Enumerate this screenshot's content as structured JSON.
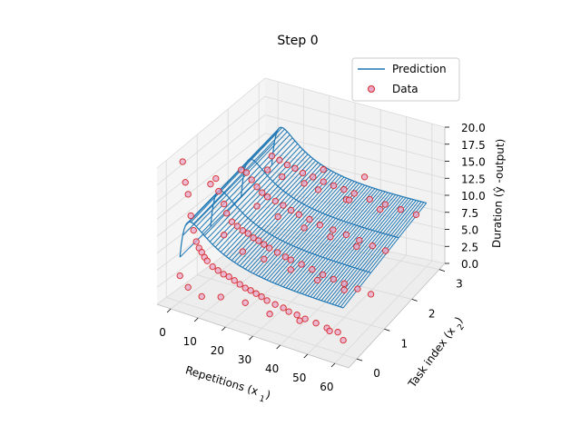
{
  "chart_data": {
    "type": "3d-scatter-surface",
    "title": "Step 0",
    "xlabel": "Repetitions (x_1)",
    "ylabel": "Task index (x_2)",
    "zlabel": "Duration (ŷ -output)",
    "xlim": [
      -5,
      65
    ],
    "ylim": [
      -0.3,
      3.2
    ],
    "zlim": [
      0,
      20
    ],
    "xticks": [
      "0",
      "10",
      "20",
      "30",
      "40",
      "50",
      "60"
    ],
    "yticks": [
      "0",
      "1",
      "2",
      "3"
    ],
    "zticks": [
      "0.0",
      "2.5",
      "5.0",
      "7.5",
      "10.0",
      "12.5",
      "15.0",
      "17.5",
      "20.0"
    ],
    "legend": {
      "placement": "upper-right",
      "entries": [
        {
          "label": "Prediction",
          "kind": "line",
          "color": "#1f77b4"
        },
        {
          "label": "Data",
          "kind": "marker",
          "color": "#d62728"
        }
      ]
    },
    "series": [
      {
        "name": "Prediction",
        "kind": "wireframe-surface",
        "color": "#1f77b4",
        "x_range": [
          0,
          60
        ],
        "y_range": [
          0,
          3
        ],
        "model": "z = 7 + 9*(1-exp(-x/2))*exp(-x/12) shifted by task index",
        "peak_z": 15.5
      },
      {
        "name": "Data",
        "kind": "scatter",
        "color": "#d62728",
        "fill": "#e9a6c8",
        "points": [
          [
            0,
            0,
            3.8
          ],
          [
            1,
            0,
            20.5
          ],
          [
            2,
            0,
            17.6
          ],
          [
            3,
            0,
            16.0
          ],
          [
            4,
            0,
            13.0
          ],
          [
            5,
            0,
            11.0
          ],
          [
            6,
            0,
            9.5
          ],
          [
            7,
            0,
            8.7
          ],
          [
            8,
            0,
            8.2
          ],
          [
            9,
            0,
            7.6
          ],
          [
            10,
            0,
            7.2
          ],
          [
            12,
            0,
            6.6
          ],
          [
            14,
            0,
            6.3
          ],
          [
            16,
            0,
            6.0
          ],
          [
            18,
            0,
            5.9
          ],
          [
            20,
            0,
            5.6
          ],
          [
            22,
            0,
            5.3
          ],
          [
            24,
            0,
            5.0
          ],
          [
            26,
            0,
            4.9
          ],
          [
            28,
            0,
            4.7
          ],
          [
            30,
            0,
            4.5
          ],
          [
            32,
            0,
            4.2
          ],
          [
            35,
            0,
            4.0
          ],
          [
            38,
            0,
            3.9
          ],
          [
            40,
            0,
            3.6
          ],
          [
            43,
            0,
            3.5
          ],
          [
            46,
            0,
            3.3
          ],
          [
            50,
            0,
            3.2
          ],
          [
            54,
            0,
            3.0
          ],
          [
            58,
            0,
            2.9
          ],
          [
            3,
            0,
            2.5
          ],
          [
            8,
            0,
            1.8
          ],
          [
            15,
            0,
            2.6
          ],
          [
            24,
            0,
            2.9
          ],
          [
            33,
            0,
            2.4
          ],
          [
            44,
            0,
            2.8
          ],
          [
            55,
            0,
            2.7
          ],
          [
            60,
            0,
            2.0
          ],
          [
            0,
            1,
            13.5
          ],
          [
            2,
            1,
            14.5
          ],
          [
            3,
            1,
            12.8
          ],
          [
            5,
            1,
            11.2
          ],
          [
            6,
            1,
            10.0
          ],
          [
            8,
            1,
            9.0
          ],
          [
            10,
            1,
            8.6
          ],
          [
            12,
            1,
            8.2
          ],
          [
            14,
            1,
            8.0
          ],
          [
            16,
            1,
            7.6
          ],
          [
            18,
            1,
            7.4
          ],
          [
            20,
            1,
            7.1
          ],
          [
            22,
            1,
            6.8
          ],
          [
            25,
            1,
            6.5
          ],
          [
            28,
            1,
            6.2
          ],
          [
            30,
            1,
            6.0
          ],
          [
            34,
            1,
            5.8
          ],
          [
            38,
            1,
            5.5
          ],
          [
            42,
            1,
            5.2
          ],
          [
            46,
            1,
            5.0
          ],
          [
            50,
            1,
            4.8
          ],
          [
            55,
            1,
            4.6
          ],
          [
            60,
            1,
            4.4
          ],
          [
            5,
            1,
            6.8
          ],
          [
            12,
            1,
            5.2
          ],
          [
            20,
            1,
            5.0
          ],
          [
            30,
            1,
            4.6
          ],
          [
            40,
            1,
            4.2
          ],
          [
            50,
            1,
            3.9
          ],
          [
            0,
            2,
            12.0
          ],
          [
            2,
            2,
            11.8
          ],
          [
            4,
            2,
            11.0
          ],
          [
            6,
            2,
            10.2
          ],
          [
            8,
            2,
            9.6
          ],
          [
            10,
            2,
            9.2
          ],
          [
            13,
            2,
            8.9
          ],
          [
            16,
            2,
            8.6
          ],
          [
            19,
            2,
            8.2
          ],
          [
            22,
            2,
            7.9
          ],
          [
            26,
            2,
            7.6
          ],
          [
            30,
            2,
            7.2
          ],
          [
            35,
            2,
            7.0
          ],
          [
            40,
            2,
            6.8
          ],
          [
            45,
            2,
            6.5
          ],
          [
            50,
            2,
            6.2
          ],
          [
            55,
            2,
            6.0
          ],
          [
            6,
            2,
            7.5
          ],
          [
            14,
            2,
            6.8
          ],
          [
            24,
            2,
            6.2
          ],
          [
            34,
            2,
            5.9
          ],
          [
            44,
            2,
            5.5
          ],
          [
            24,
            2,
            12.5
          ],
          [
            40,
            2,
            11.8
          ],
          [
            10,
            2,
            13.0
          ],
          [
            0,
            3,
            10.5
          ],
          [
            3,
            3,
            10.2
          ],
          [
            6,
            3,
            9.8
          ],
          [
            9,
            3,
            9.6
          ],
          [
            12,
            3,
            9.2
          ],
          [
            16,
            3,
            9.0
          ],
          [
            20,
            3,
            8.7
          ],
          [
            24,
            3,
            8.5
          ],
          [
            28,
            3,
            8.3
          ],
          [
            32,
            3,
            8.1
          ],
          [
            38,
            3,
            7.8
          ],
          [
            44,
            3,
            7.6
          ],
          [
            50,
            3,
            7.4
          ],
          [
            56,
            3,
            7.2
          ],
          [
            4,
            3,
            8.0
          ],
          [
            18,
            3,
            7.4
          ],
          [
            30,
            3,
            7.0
          ],
          [
            42,
            3,
            6.7
          ],
          [
            20,
            3,
            10.4
          ],
          [
            36,
            3,
            10.8
          ]
        ]
      }
    ]
  }
}
